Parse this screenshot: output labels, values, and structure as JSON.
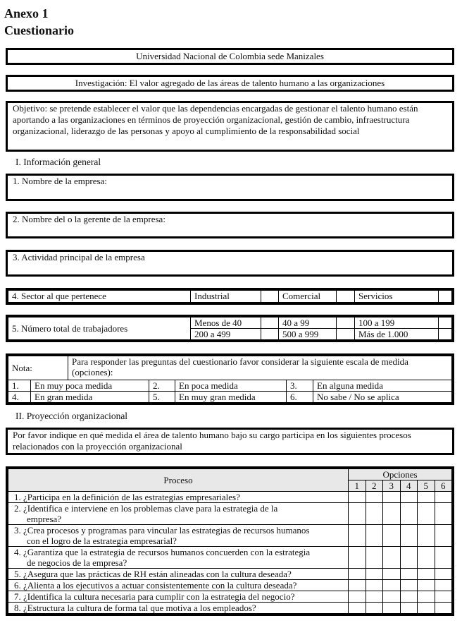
{
  "heading": {
    "annex": "Anexo 1",
    "title": "Cuestionario"
  },
  "university": "Universidad Nacional de Colombia sede Manizales",
  "research": "Investigación: El valor agregado de las áreas de talento humano a las organizaciones",
  "objective": "Objetivo: se pretende establecer el valor que las dependencias encargadas de gestionar el talento humano están aportando a las organizaciones en términos de proyección organizacional, gestión de cambio, infraestructura organizacional, liderazgo de las personas y apoyo al cumplimiento de la responsabilidad social",
  "section1": {
    "title": "I. Información general",
    "q1": "1. Nombre de la empresa:",
    "q2": "2. Nombre del o la gerente de la empresa:",
    "q3": "3. Actividad principal de la empresa",
    "q4": {
      "label": "4. Sector al que pertenece",
      "options": [
        "Industrial",
        "Comercial",
        "Servicios"
      ]
    },
    "q5": {
      "label": "5. Número total de trabajadores",
      "options": [
        "Menos de 40",
        "40 a 99",
        "100 a 199",
        "200 a 499",
        "500 a 999",
        "Más de 1.000"
      ]
    }
  },
  "note": {
    "label": "Nota:",
    "text": "Para responder las preguntas del cuestionario favor considerar la siguiente escala de medida (opciones):",
    "scale": [
      {
        "n": "1.",
        "t": "En muy poca medida"
      },
      {
        "n": "2.",
        "t": "En poca medida"
      },
      {
        "n": "3.",
        "t": "En alguna medida"
      },
      {
        "n": "4.",
        "t": "En gran medida"
      },
      {
        "n": "5.",
        "t": "En muy gran medida"
      },
      {
        "n": "6.",
        "t": "No sabe / No se aplica"
      }
    ]
  },
  "section2": {
    "title": "II. Proyección organizacional",
    "prompt": "Por favor indique en qué medida el área de talento humano bajo su cargo participa en los siguientes procesos relacionados con la proyección organizacional",
    "col_process": "Proceso",
    "col_options": "Opciones",
    "option_numbers": [
      "1",
      "2",
      "3",
      "4",
      "5",
      "6"
    ],
    "questions": [
      [
        "1. ¿Participa en la definición de las estrategias empresariales?"
      ],
      [
        "2. ¿Identifica e interviene en los problemas clave para la estrategia de la",
        "empresa?"
      ],
      [
        "3. ¿Crea procesos y programas para vincular las estrategias de recursos humanos",
        "con el logro de la estrategia empresarial?"
      ],
      [
        "4. ¿Garantiza que la estrategia de recursos humanos concuerden con la estrategia",
        "de negocios de la empresa?"
      ],
      [
        "5. ¿Asegura que las prácticas de RH están alineadas con la cultura deseada?"
      ],
      [
        "6. ¿Alienta a los ejecutivos a actuar consistentemente con la cultura deseada?"
      ],
      [
        "7. ¿Identifica la cultura necesaria para cumplir con la estrategia del negocio?"
      ],
      [
        "8. ¿Estructura la cultura de forma tal que motiva a los empleados?"
      ]
    ]
  }
}
